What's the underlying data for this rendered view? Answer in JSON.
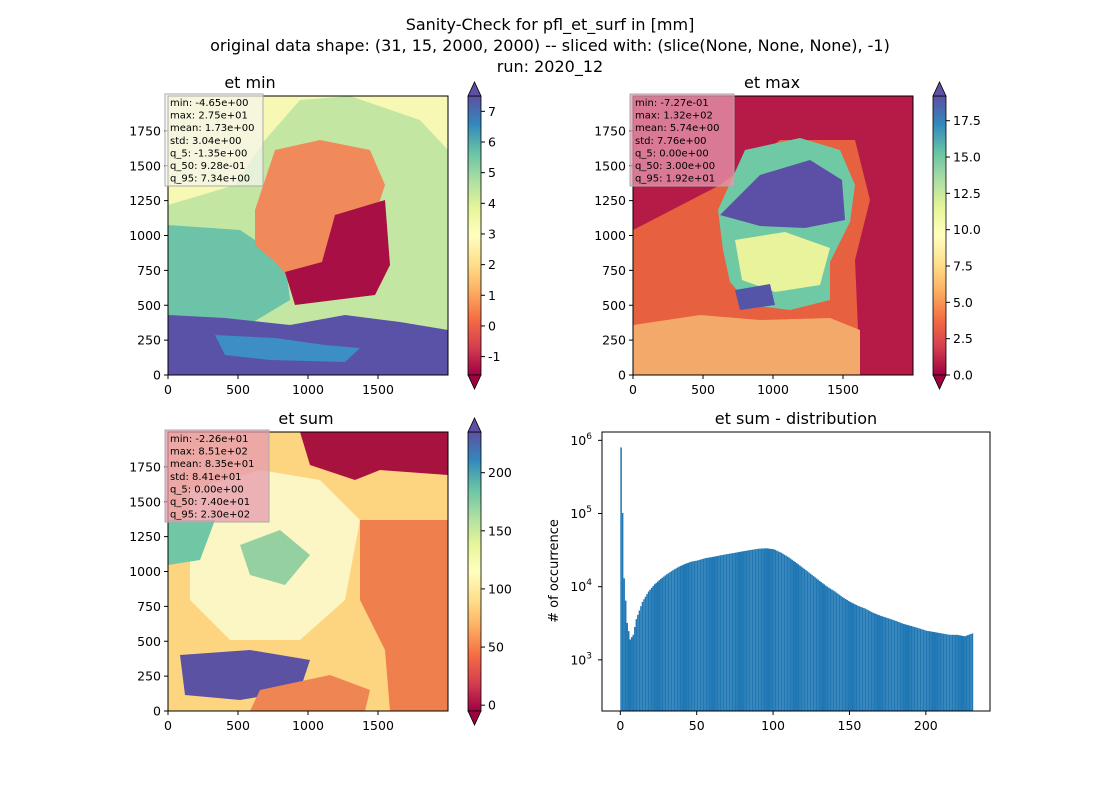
{
  "suptitle": {
    "line1": "Sanity-Check for pfl_et_surf in [mm]",
    "line2": "original data shape: (31, 15, 2000, 2000) -- sliced with: (slice(None, None, None), -1)",
    "line3": "run: 2020_12"
  },
  "colormap": "Spectral",
  "chart_data": [
    {
      "type": "heatmap",
      "title": "et min",
      "x_ticks": [
        "0",
        "500",
        "1000",
        "1500"
      ],
      "y_ticks": [
        "0",
        "250",
        "500",
        "750",
        "1000",
        "1250",
        "1500",
        "1750"
      ],
      "xlim": [
        0,
        2000
      ],
      "ylim": [
        0,
        2000
      ],
      "colorbar": {
        "min": -1.6,
        "max": 7.5,
        "ticks": [
          "-1",
          "0",
          "1",
          "2",
          "3",
          "4",
          "5",
          "6",
          "7"
        ],
        "tick_values": [
          -1,
          0,
          1,
          2,
          3,
          4,
          5,
          6,
          7
        ],
        "extend": "both"
      },
      "stats": [
        "min: -4.65e+00",
        "max: 2.75e+01",
        "mean: 1.73e+00",
        "std: 3.04e+00",
        "q_5: -1.35e+00",
        "q_50: 9.28e-01",
        "q_95: 7.34e+00"
      ]
    },
    {
      "type": "heatmap",
      "title": "et max",
      "x_ticks": [
        "0",
        "500",
        "1000",
        "1500"
      ],
      "y_ticks": [
        "0",
        "250",
        "500",
        "750",
        "1000",
        "1250",
        "1500",
        "1750"
      ],
      "xlim": [
        0,
        2000
      ],
      "ylim": [
        0,
        2000
      ],
      "colorbar": {
        "min": 0,
        "max": 19.2,
        "ticks": [
          "0.0",
          "2.5",
          "5.0",
          "7.5",
          "10.0",
          "12.5",
          "15.0",
          "17.5"
        ],
        "tick_values": [
          0,
          2.5,
          5,
          7.5,
          10,
          12.5,
          15,
          17.5
        ],
        "extend": "both"
      },
      "stats": [
        "min: -7.27e-01",
        "max: 1.32e+02",
        "mean: 5.74e+00",
        "std: 7.76e+00",
        "q_5: 0.00e+00",
        "q_50: 3.00e+00",
        "q_95: 1.92e+01"
      ]
    },
    {
      "type": "heatmap",
      "title": "et sum",
      "x_ticks": [
        "0",
        "500",
        "1000",
        "1500"
      ],
      "y_ticks": [
        "0",
        "250",
        "500",
        "750",
        "1000",
        "1250",
        "1500",
        "1750"
      ],
      "xlim": [
        0,
        2000
      ],
      "ylim": [
        0,
        2000
      ],
      "colorbar": {
        "min": -5,
        "max": 235,
        "ticks": [
          "0",
          "50",
          "100",
          "150",
          "200"
        ],
        "tick_values": [
          0,
          50,
          100,
          150,
          200
        ],
        "extend": "both"
      },
      "stats": [
        "min: -2.26e+01",
        "max: 8.51e+02",
        "mean: 8.35e+01",
        "std: 8.41e+01",
        "q_5: 0.00e+00",
        "q_50: 7.40e+01",
        "q_95: 2.30e+02"
      ]
    },
    {
      "type": "bar",
      "title": "et sum - distribution",
      "ylabel": "# of occurrence",
      "yscale": "log",
      "xlim": [
        -12,
        242
      ],
      "ylim": [
        200,
        1300000
      ],
      "x_ticks": [
        "0",
        "50",
        "100",
        "150",
        "200"
      ],
      "x_tick_values": [
        0,
        50,
        100,
        150,
        200
      ],
      "y_ticks": [
        "10",
        "10",
        "10",
        "10"
      ],
      "y_tick_exponents": [
        "3",
        "4",
        "5",
        "6"
      ],
      "y_tick_values": [
        1000,
        10000,
        100000,
        1000000
      ],
      "bin_width": 1,
      "bar_color": "#1f77b4",
      "bins": [
        {
          "x": 0,
          "y": 800000
        },
        {
          "x": 2,
          "y": 13000
        },
        {
          "x": 4,
          "y": 3200
        },
        {
          "x": 6,
          "y": 1900
        },
        {
          "x": 8,
          "y": 2200
        },
        {
          "x": 10,
          "y": 3600
        },
        {
          "x": 14,
          "y": 6200
        },
        {
          "x": 18,
          "y": 8600
        },
        {
          "x": 22,
          "y": 10800
        },
        {
          "x": 26,
          "y": 12800
        },
        {
          "x": 30,
          "y": 14800
        },
        {
          "x": 34,
          "y": 16800
        },
        {
          "x": 38,
          "y": 18800
        },
        {
          "x": 42,
          "y": 20500
        },
        {
          "x": 46,
          "y": 22000
        },
        {
          "x": 50,
          "y": 22800
        },
        {
          "x": 55,
          "y": 24500
        },
        {
          "x": 60,
          "y": 25500
        },
        {
          "x": 65,
          "y": 26800
        },
        {
          "x": 70,
          "y": 28000
        },
        {
          "x": 75,
          "y": 29200
        },
        {
          "x": 80,
          "y": 30500
        },
        {
          "x": 85,
          "y": 31800
        },
        {
          "x": 90,
          "y": 33000
        },
        {
          "x": 95,
          "y": 33500
        },
        {
          "x": 100,
          "y": 32500
        },
        {
          "x": 105,
          "y": 29000
        },
        {
          "x": 110,
          "y": 25000
        },
        {
          "x": 115,
          "y": 21000
        },
        {
          "x": 120,
          "y": 17500
        },
        {
          "x": 125,
          "y": 14500
        },
        {
          "x": 130,
          "y": 12000
        },
        {
          "x": 135,
          "y": 10000
        },
        {
          "x": 140,
          "y": 8600
        },
        {
          "x": 145,
          "y": 7200
        },
        {
          "x": 150,
          "y": 6200
        },
        {
          "x": 155,
          "y": 5500
        },
        {
          "x": 160,
          "y": 5000
        },
        {
          "x": 165,
          "y": 4400
        },
        {
          "x": 170,
          "y": 4000
        },
        {
          "x": 175,
          "y": 3700
        },
        {
          "x": 180,
          "y": 3400
        },
        {
          "x": 185,
          "y": 3100
        },
        {
          "x": 190,
          "y": 2900
        },
        {
          "x": 195,
          "y": 2700
        },
        {
          "x": 200,
          "y": 2500
        },
        {
          "x": 205,
          "y": 2400
        },
        {
          "x": 210,
          "y": 2300
        },
        {
          "x": 215,
          "y": 2200
        },
        {
          "x": 220,
          "y": 2200
        },
        {
          "x": 225,
          "y": 2100
        },
        {
          "x": 230,
          "y": 2300
        }
      ]
    }
  ]
}
